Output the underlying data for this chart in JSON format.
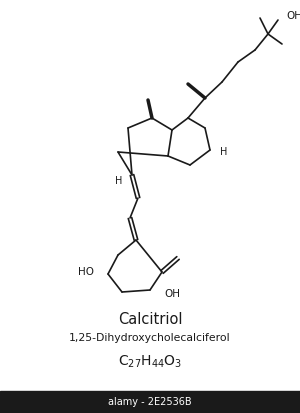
{
  "title1": "Calcitriol",
  "title2": "1,25-Dihydroxycholecalciferol",
  "watermark": "alamy - 2E2536B",
  "bg_color": "#ffffff",
  "line_color": "#1a1a1a",
  "text_color": "#1a1a1a",
  "lw": 1.2
}
